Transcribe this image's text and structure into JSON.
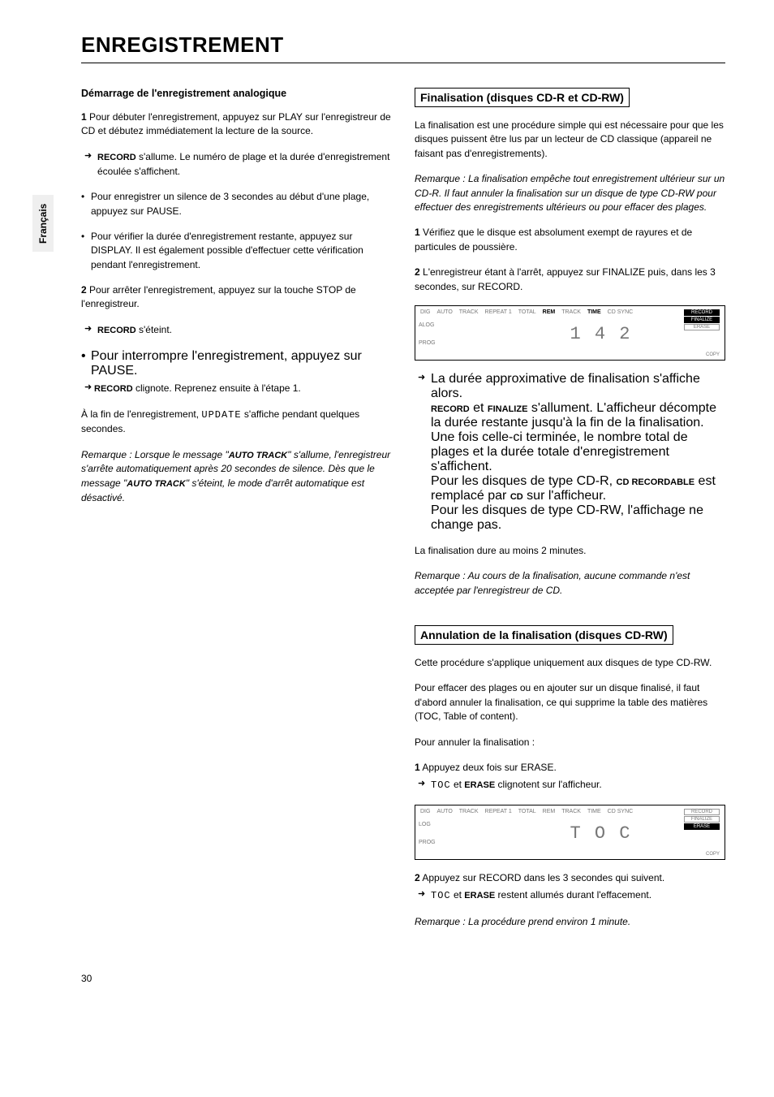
{
  "tab_label": "Français",
  "doc_title": "ENREGISTREMENT",
  "left": {
    "heading": "Démarrage de l'enregistrement analogique",
    "step1_num": "1",
    "step1_text": "Pour débuter l'enregistrement, appuyez sur PLAY sur l'enregistreur de CD et débutez immédiatement la lecture de la source.",
    "step1_arrow_prefix": "RECORD",
    "step1_arrow_text": " s'allume.  Le numéro de plage et la durée d'enregistrement écoulée s'affichent.",
    "bullet1": "Pour enregistrer un silence de 3 secondes au début d'une plage, appuyez sur PAUSE.",
    "bullet2": "Pour vérifier la durée d'enregistrement restante, appuyez sur DISPLAY. Il est également possible d'effectuer cette vérification pendant l'enregistrement.",
    "step2_num": "2",
    "step2_text": "Pour arrêter l'enregistrement, appuyez sur la touche STOP de l'enregistreur.",
    "step2_arrow_prefix": "RECORD",
    "step2_arrow_text": " s'éteint.",
    "bullet3": "Pour interrompre l'enregistrement, appuyez sur PAUSE.",
    "bullet3_arrow_prefix": "RECORD",
    "bullet3_arrow_text": " clignote.  Reprenez ensuite à l'étape 1.",
    "closing_prefix": "À la fin de l'enregistrement, ",
    "closing_mono": "UPDATE",
    "closing_suffix": " s'affiche pendant quelques secondes.",
    "remark_label": "Remarque :",
    "remark_text_1": "Lorsque le message \"",
    "remark_sc_1": "AUTO TRACK",
    "remark_text_2": "\" s'allume, l'enregistreur s'arrête automatiquement après 20 secondes de silence. Dès que le message \"",
    "remark_sc_2": "AUTO TRACK",
    "remark_text_3": "\" s'éteint, le mode d'arrêt automatique est désactivé."
  },
  "right": {
    "section1_title": "Finalisation (disques CD-R et CD-RW)",
    "intro1": "La finalisation est une procédure simple qui est nécessaire pour que les disques puissent être lus par un lecteur de CD classique (appareil ne faisant pas d'enregistrements).",
    "remark1_label": "Remarque :",
    "remark1_text": "La finalisation empêche tout enregistrement ultérieur sur un CD-R.  Il faut annuler la finalisation sur un disque de type CD-RW pour effectuer des enregistrements ultérieurs ou pour effacer des plages.",
    "step1_num": "1",
    "step1_text": "Vérifiez que le disque est absolument exempt de rayures et de particules de poussière.",
    "step2_num": "2",
    "step2_text": "L'enregistreur étant à l'arrêt, appuyez sur FINALIZE puis, dans les 3 secondes, sur RECORD.",
    "arrow_block": {
      "line1": "La durée approximative de finalisation s'affiche alors.",
      "line2_sc1": "RECORD",
      "line2_mid": " et ",
      "line2_sc2": "FINALIZE",
      "line2_rest": " s'allument.  L'afficheur décompte la durée restante jusqu'à la fin de la finalisation.",
      "line3": "Une fois celle-ci terminée, le nombre total de plages et la durée totale d'enregistrement s'affichent.",
      "line4_pre": "Pour les disques de type CD-R, ",
      "line4_sc1": "CD RECORDABLE",
      "line4_mid": " est remplacé par ",
      "line4_sc2": "CD",
      "line4_post": " sur l'afficheur.",
      "line5": "Pour les disques de type CD-RW, l'affichage ne change pas."
    },
    "closing1": "La finalisation dure au moins 2 minutes.",
    "remark2_label": "Remarque :",
    "remark2_text": "Au cours de la finalisation, aucune commande n'est acceptée par l'enregistreur de CD.",
    "section2_title": "Annulation de la finalisation (disques CD-RW)",
    "intro2a": "Cette procédure s'applique uniquement aux disques de type CD-RW.",
    "intro2b": "Pour effacer des plages ou en ajouter sur un disque finalisé, il faut d'abord annuler la finalisation, ce qui supprime la table des matières (TOC, Table of content).",
    "sub2": "Pour annuler la finalisation :",
    "u_step1_num": "1",
    "u_step1_text": "Appuyez deux fois sur ERASE.",
    "u_step1_arrow_mono": "TOC",
    "u_step1_arrow_mid": " et ",
    "u_step1_arrow_sc": "ERASE",
    "u_step1_arrow_rest": " clignotent sur l'afficheur.",
    "u_step2_num": "2",
    "u_step2_text": "Appuyez sur RECORD dans les 3 secondes qui suivent.",
    "u_step2_arrow_mono": "TOC",
    "u_step2_arrow_mid": " et ",
    "u_step2_arrow_sc": "ERASE",
    "u_step2_arrow_rest": "  restent allumés durant l'effacement.",
    "remark3_label": "Remarque :",
    "remark3_text": "La procédure prend environ 1 minute."
  },
  "display1": {
    "labels": [
      "DIG",
      "AUTO",
      "TRACK",
      "REPEAT 1",
      "TOTAL",
      "REM",
      "TRACK",
      "TIME",
      "CD SYNC"
    ],
    "on_idx": [
      5,
      7
    ],
    "side": [
      "RECORD",
      "FINALIZE",
      "ERASE"
    ],
    "side_on": [
      0,
      1
    ],
    "left_col": [
      "ALOG",
      "PROG"
    ],
    "seg": "1  4 2",
    "bottom_right": "COPY"
  },
  "display2": {
    "labels": [
      "DIG",
      "AUTO",
      "TRACK",
      "REPEAT 1",
      "TOTAL",
      "REM",
      "TRACK",
      "TIME",
      "CD SYNC"
    ],
    "on_idx": [],
    "side": [
      "RECORD",
      "FINALIZE",
      "ERASE"
    ],
    "side_on": [
      2
    ],
    "left_col": [
      "LOG",
      "PROG"
    ],
    "seg": "T O C",
    "bottom_right": "COPY"
  },
  "page_number": "30"
}
